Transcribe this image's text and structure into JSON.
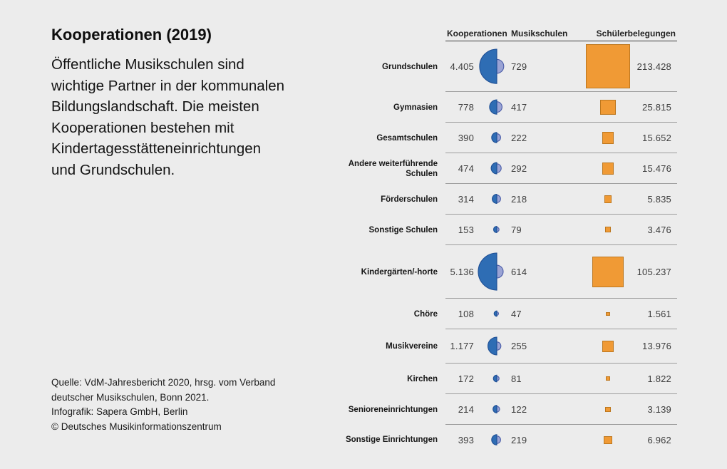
{
  "page": {
    "background": "#ececec"
  },
  "intro": {
    "title": "Kooperationen (2019)",
    "paragraph": "Öffentliche Musikschulen sind\nwichtige Partner in der kommunalen\nBildungslandschaft. Die meisten\nKooperationen bestehen mit\nKindertagesstätteneinrichtungen\nund Grundschulen."
  },
  "source": {
    "text": "Quelle: VdM-Jahresbericht 2020, hrsg. vom Verband\ndeutscher Musikschulen, Bonn 2021.\nInfografik: Sapera GmbH, Berlin\n© Deutsches Musikinformationszentrum"
  },
  "chart_data": {
    "type": "table",
    "title": "Kooperationen (2019)",
    "columns": [
      "Kooperationen",
      "Musikschulen",
      "Schülerbelegungen"
    ],
    "legend_position": "top",
    "scaling": "area-proportional glyphs: blue left half-circle = Kooperationen, light half-circle = Musikschulen, orange square = Schülerbelegungen",
    "colors": {
      "kooperationen_fill": "#2E6DB4",
      "kooperationen_stroke": "#1E4E94",
      "musikschulen_fill": "#9AA3D4",
      "musikschulen_stroke": "#4A5CA8",
      "schueler_fill": "#F09A35",
      "schueler_stroke": "#BD771E"
    },
    "rows": [
      {
        "label": "Grundschulen",
        "kooperationen": 4405,
        "musikschulen": 729,
        "schuelerbelegungen": 213428,
        "display": [
          "4.405",
          "729",
          "213.428"
        ]
      },
      {
        "label": "Gymnasien",
        "kooperationen": 778,
        "musikschulen": 417,
        "schuelerbelegungen": 25815,
        "display": [
          "778",
          "417",
          "25.815"
        ]
      },
      {
        "label": "Gesamtschulen",
        "kooperationen": 390,
        "musikschulen": 222,
        "schuelerbelegungen": 15652,
        "display": [
          "390",
          "222",
          "15.652"
        ]
      },
      {
        "label": "Andere weiterführende Schulen",
        "kooperationen": 474,
        "musikschulen": 292,
        "schuelerbelegungen": 15476,
        "display": [
          "474",
          "292",
          "15.476"
        ]
      },
      {
        "label": "Förderschulen",
        "kooperationen": 314,
        "musikschulen": 218,
        "schuelerbelegungen": 5835,
        "display": [
          "314",
          "218",
          "5.835"
        ]
      },
      {
        "label": "Sonstige Schulen",
        "kooperationen": 153,
        "musikschulen": 79,
        "schuelerbelegungen": 3476,
        "display": [
          "153",
          "79",
          "3.476"
        ]
      },
      {
        "label": "Kindergärten/-horte",
        "kooperationen": 5136,
        "musikschulen": 614,
        "schuelerbelegungen": 105237,
        "display": [
          "5.136",
          "614",
          "105.237"
        ]
      },
      {
        "label": "Chöre",
        "kooperationen": 108,
        "musikschulen": 47,
        "schuelerbelegungen": 1561,
        "display": [
          "108",
          "47",
          "1.561"
        ]
      },
      {
        "label": "Musikvereine",
        "kooperationen": 1177,
        "musikschulen": 255,
        "schuelerbelegungen": 13976,
        "display": [
          "1.177",
          "255",
          "13.976"
        ]
      },
      {
        "label": "Kirchen",
        "kooperationen": 172,
        "musikschulen": 81,
        "schuelerbelegungen": 1822,
        "display": [
          "172",
          "81",
          "1.822"
        ]
      },
      {
        "label": "Senioreneinrichtungen",
        "kooperationen": 214,
        "musikschulen": 122,
        "schuelerbelegungen": 3139,
        "display": [
          "214",
          "122",
          "3.139"
        ]
      },
      {
        "label": "Sonstige Einrichtungen",
        "kooperationen": 393,
        "musikschulen": 219,
        "schuelerbelegungen": 6962,
        "display": [
          "393",
          "219",
          "6.962"
        ]
      }
    ]
  }
}
